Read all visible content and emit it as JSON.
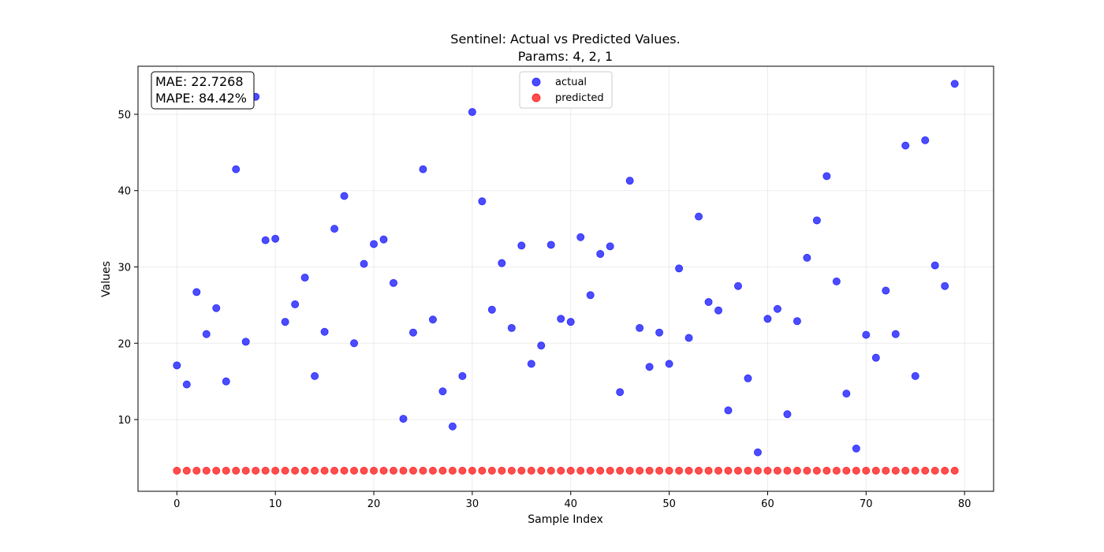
{
  "chart_data": {
    "type": "scatter",
    "title_line1": "Sentinel: Actual vs Predicted Values.",
    "title_line2": "Params: 4, 2, 1",
    "xlabel": "Sample Index",
    "ylabel": "Values",
    "xlim": [
      -3.95,
      82.95
    ],
    "ylim": [
      0.6,
      56.3
    ],
    "xticks": [
      0,
      10,
      20,
      30,
      40,
      50,
      60,
      70,
      80
    ],
    "yticks": [
      10,
      20,
      30,
      40,
      50
    ],
    "grid": true,
    "legend_position": "top-center",
    "metrics": {
      "mae": "MAE: 22.7268",
      "mape": "MAPE: 84.42%"
    },
    "series": [
      {
        "name": "actual",
        "color": "#0000ff",
        "x": [
          0,
          1,
          2,
          3,
          4,
          5,
          6,
          7,
          8,
          9,
          10,
          11,
          12,
          13,
          14,
          15,
          16,
          17,
          18,
          19,
          20,
          21,
          22,
          23,
          24,
          25,
          26,
          27,
          28,
          29,
          30,
          31,
          32,
          33,
          34,
          35,
          36,
          37,
          38,
          39,
          40,
          41,
          42,
          43,
          44,
          45,
          46,
          47,
          48,
          49,
          50,
          51,
          52,
          53,
          54,
          55,
          56,
          57,
          58,
          59,
          60,
          61,
          62,
          63,
          64,
          65,
          66,
          67,
          68,
          69,
          70,
          71,
          72,
          73,
          74,
          75,
          76,
          77,
          78,
          79
        ],
        "y": [
          17.1,
          14.6,
          26.7,
          21.2,
          24.6,
          15.0,
          42.8,
          20.2,
          52.3,
          33.5,
          33.7,
          22.8,
          25.1,
          28.6,
          15.7,
          21.5,
          35.0,
          39.3,
          20.0,
          30.4,
          33.0,
          33.6,
          27.9,
          10.1,
          21.4,
          42.8,
          23.1,
          13.7,
          9.1,
          15.7,
          50.3,
          38.6,
          24.4,
          30.5,
          22.0,
          32.8,
          17.3,
          19.7,
          32.9,
          23.2,
          22.8,
          33.9,
          26.3,
          31.7,
          32.7,
          13.6,
          41.3,
          22.0,
          16.9,
          21.4,
          17.3,
          29.8,
          20.7,
          36.6,
          25.4,
          24.3,
          11.2,
          27.5,
          15.4,
          5.7,
          23.2,
          24.5,
          10.7,
          22.9,
          31.2,
          36.1,
          41.9,
          28.1,
          13.4,
          6.2,
          21.1,
          18.1,
          26.9,
          21.2,
          45.9,
          15.7,
          46.6,
          30.2,
          27.5,
          54.0
        ]
      },
      {
        "name": "predicted",
        "color": "#ff0000",
        "x": [
          0,
          1,
          2,
          3,
          4,
          5,
          6,
          7,
          8,
          9,
          10,
          11,
          12,
          13,
          14,
          15,
          16,
          17,
          18,
          19,
          20,
          21,
          22,
          23,
          24,
          25,
          26,
          27,
          28,
          29,
          30,
          31,
          32,
          33,
          34,
          35,
          36,
          37,
          38,
          39,
          40,
          41,
          42,
          43,
          44,
          45,
          46,
          47,
          48,
          49,
          50,
          51,
          52,
          53,
          54,
          55,
          56,
          57,
          58,
          59,
          60,
          61,
          62,
          63,
          64,
          65,
          66,
          67,
          68,
          69,
          70,
          71,
          72,
          73,
          74,
          75,
          76,
          77,
          78,
          79
        ],
        "y": [
          3.3,
          3.3,
          3.3,
          3.3,
          3.3,
          3.3,
          3.3,
          3.3,
          3.3,
          3.3,
          3.3,
          3.3,
          3.3,
          3.3,
          3.3,
          3.3,
          3.3,
          3.3,
          3.3,
          3.3,
          3.3,
          3.3,
          3.3,
          3.3,
          3.3,
          3.3,
          3.3,
          3.3,
          3.3,
          3.3,
          3.3,
          3.3,
          3.3,
          3.3,
          3.3,
          3.3,
          3.3,
          3.3,
          3.3,
          3.3,
          3.3,
          3.3,
          3.3,
          3.3,
          3.3,
          3.3,
          3.3,
          3.3,
          3.3,
          3.3,
          3.3,
          3.3,
          3.3,
          3.3,
          3.3,
          3.3,
          3.3,
          3.3,
          3.3,
          3.3,
          3.3,
          3.3,
          3.3,
          3.3,
          3.3,
          3.3,
          3.3,
          3.3,
          3.3,
          3.3,
          3.3,
          3.3,
          3.3,
          3.3,
          3.3,
          3.3,
          3.3,
          3.3,
          3.3,
          3.3
        ]
      }
    ]
  }
}
